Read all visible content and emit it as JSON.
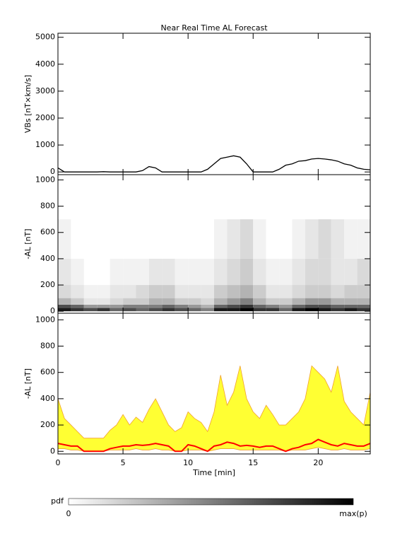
{
  "chart_data": [
    {
      "type": "line",
      "title": "Near Real Time AL Forecast",
      "ylabel": "VBs [nT×km/s]",
      "x": [
        0,
        0.5,
        1,
        1.5,
        2,
        2.5,
        3,
        3.5,
        4,
        4.5,
        5,
        5.5,
        6,
        6.5,
        7,
        7.5,
        8,
        8.5,
        9,
        9.5,
        10,
        10.5,
        11,
        11.5,
        12,
        12.5,
        13,
        13.5,
        14,
        14.5,
        15,
        15.5,
        16,
        16.5,
        17,
        17.5,
        18,
        18.5,
        19,
        19.5,
        20,
        20.5,
        21,
        21.5,
        22,
        22.5,
        23,
        23.5,
        24
      ],
      "values": [
        150,
        0,
        0,
        0,
        0,
        0,
        0,
        10,
        0,
        0,
        0,
        0,
        0,
        50,
        200,
        150,
        0,
        0,
        0,
        0,
        0,
        0,
        0,
        100,
        300,
        500,
        550,
        600,
        550,
        300,
        0,
        0,
        0,
        0,
        100,
        250,
        300,
        400,
        420,
        480,
        500,
        480,
        450,
        400,
        300,
        250,
        150,
        100,
        80
      ],
      "color": "#000000",
      "xlim": [
        0,
        24
      ],
      "ylim": [
        -100,
        5150
      ],
      "yticks": [
        0,
        1000,
        2000,
        3000,
        4000,
        5000
      ]
    },
    {
      "type": "heatmap",
      "ylabel": "-AL [nT]",
      "x_edges": [
        0,
        1,
        2,
        3,
        4,
        5,
        6,
        7,
        8,
        9,
        10,
        11,
        12,
        13,
        14,
        15,
        16,
        17,
        18,
        19,
        20,
        21,
        22,
        23,
        24
      ],
      "y_bins": [
        0,
        25,
        50,
        100,
        200,
        400,
        700
      ],
      "z": [
        [
          0.9,
          0.7,
          0.3,
          0.15,
          0.1,
          0.05
        ],
        [
          0.8,
          0.6,
          0.2,
          0.1,
          0.05,
          0
        ],
        [
          0.7,
          0.4,
          0.1,
          0.05,
          0,
          0
        ],
        [
          0.8,
          0.4,
          0.1,
          0.05,
          0,
          0
        ],
        [
          0.6,
          0.4,
          0.15,
          0.1,
          0.05,
          0
        ],
        [
          0.7,
          0.5,
          0.2,
          0.1,
          0.05,
          0
        ],
        [
          0.6,
          0.5,
          0.2,
          0.15,
          0.05,
          0
        ],
        [
          0.7,
          0.5,
          0.3,
          0.2,
          0.1,
          0
        ],
        [
          0.8,
          0.6,
          0.3,
          0.2,
          0.1,
          0
        ],
        [
          0.7,
          0.5,
          0.2,
          0.1,
          0.05,
          0
        ],
        [
          0.6,
          0.4,
          0.2,
          0.1,
          0.05,
          0
        ],
        [
          0.5,
          0.3,
          0.15,
          0.1,
          0.05,
          0
        ],
        [
          0.9,
          0.6,
          0.3,
          0.2,
          0.1,
          0.05
        ],
        [
          0.9,
          0.7,
          0.4,
          0.25,
          0.15,
          0.1
        ],
        [
          1,
          0.8,
          0.5,
          0.3,
          0.2,
          0.15
        ],
        [
          0.8,
          0.6,
          0.3,
          0.2,
          0.1,
          0.05
        ],
        [
          0.8,
          0.5,
          0.2,
          0.1,
          0.05,
          0
        ],
        [
          0.6,
          0.4,
          0.2,
          0.1,
          0.05,
          0
        ],
        [
          0.9,
          0.6,
          0.3,
          0.15,
          0.1,
          0.05
        ],
        [
          1,
          0.7,
          0.4,
          0.2,
          0.15,
          0.1
        ],
        [
          0.9,
          0.7,
          0.4,
          0.2,
          0.15,
          0.15
        ],
        [
          0.8,
          0.6,
          0.3,
          0.15,
          0.1,
          0.1
        ],
        [
          0.9,
          0.6,
          0.3,
          0.2,
          0.1,
          0.05
        ],
        [
          0.8,
          0.6,
          0.3,
          0.2,
          0.15,
          0.05
        ]
      ],
      "xlim": [
        0,
        24
      ],
      "ylim": [
        -15,
        1040
      ],
      "yticks": [
        0,
        200,
        400,
        600,
        800,
        1000
      ]
    },
    {
      "type": "band",
      "ylabel": "-AL [nT]",
      "xlabel": "Time [min]",
      "x": [
        0,
        0.5,
        1,
        1.5,
        2,
        2.5,
        3,
        3.5,
        4,
        4.5,
        5,
        5.5,
        6,
        6.5,
        7,
        7.5,
        8,
        8.5,
        9,
        9.5,
        10,
        10.5,
        11,
        11.5,
        12,
        12.5,
        13,
        13.5,
        14,
        14.5,
        15,
        15.5,
        16,
        16.5,
        17,
        17.5,
        18,
        18.5,
        19,
        19.5,
        20,
        20.5,
        21,
        21.5,
        22,
        22.5,
        23,
        23.5,
        24
      ],
      "upper": [
        400,
        250,
        200,
        150,
        100,
        100,
        100,
        100,
        160,
        200,
        280,
        200,
        260,
        220,
        320,
        400,
        300,
        200,
        150,
        180,
        300,
        250,
        220,
        150,
        300,
        580,
        350,
        450,
        650,
        400,
        300,
        250,
        350,
        280,
        200,
        200,
        250,
        300,
        400,
        650,
        600,
        550,
        450,
        650,
        380,
        300,
        250,
        200,
        450
      ],
      "lower": [
        20,
        20,
        10,
        10,
        0,
        0,
        0,
        0,
        10,
        10,
        10,
        10,
        20,
        10,
        10,
        20,
        10,
        10,
        0,
        0,
        10,
        10,
        10,
        0,
        10,
        20,
        20,
        20,
        10,
        10,
        10,
        10,
        10,
        10,
        10,
        0,
        10,
        10,
        10,
        20,
        30,
        20,
        10,
        10,
        20,
        10,
        10,
        10,
        20
      ],
      "median": [
        60,
        50,
        40,
        40,
        0,
        0,
        0,
        0,
        20,
        30,
        40,
        40,
        50,
        45,
        50,
        60,
        50,
        40,
        0,
        0,
        50,
        40,
        20,
        0,
        40,
        50,
        70,
        60,
        40,
        45,
        40,
        30,
        40,
        40,
        20,
        0,
        20,
        30,
        50,
        60,
        90,
        70,
        50,
        40,
        60,
        50,
        40,
        40,
        60
      ],
      "band_color": "#ffff33",
      "edge_color": "#f0a030",
      "median_color": "#ff0000",
      "xlim": [
        0,
        24
      ],
      "ylim": [
        -20,
        1050
      ],
      "yticks": [
        0,
        200,
        400,
        600,
        800,
        1000
      ],
      "xticks": [
        0,
        5,
        10,
        15,
        20
      ]
    }
  ],
  "colorbar": {
    "label": "pdf",
    "min_label": "0",
    "max_label": "max(p)"
  }
}
